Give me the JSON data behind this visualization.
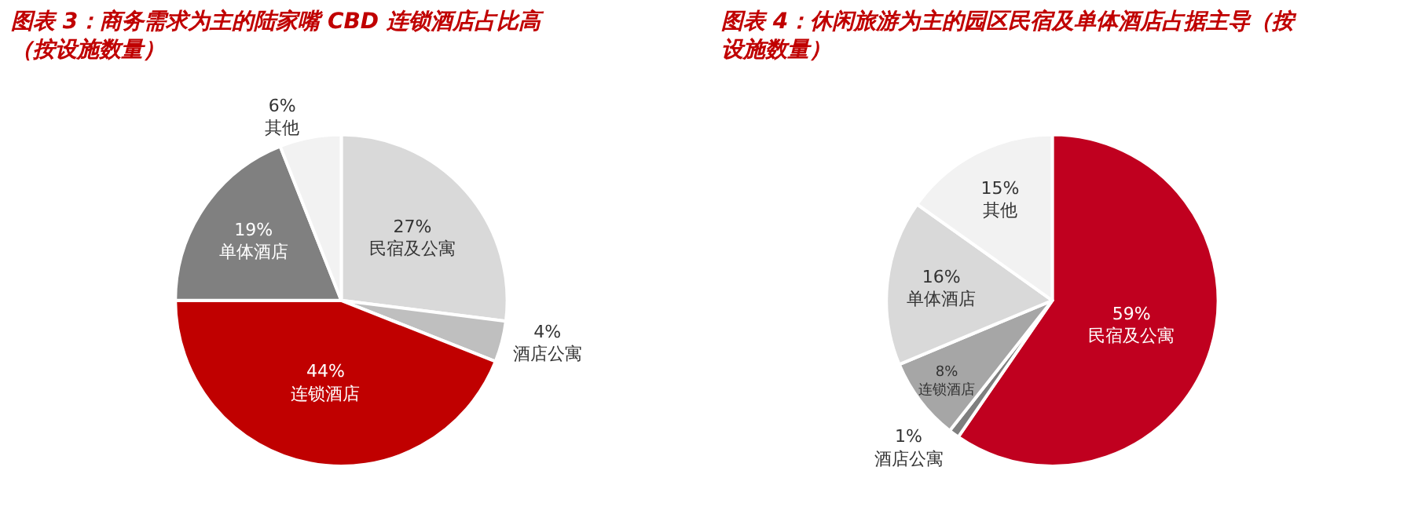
{
  "chart_data": [
    {
      "type": "pie",
      "title": "图表 3：商务需求为主的陆家嘴 CBD 连锁酒店占比高（按设施数量）",
      "categories": [
        "民宿及公寓",
        "酒店公寓",
        "连锁酒店",
        "单体酒店",
        "其他"
      ],
      "values": [
        27,
        4,
        44,
        19,
        6
      ],
      "value_labels": [
        "27%",
        "4%",
        "44%",
        "19%",
        "6%"
      ],
      "colors": [
        "#d9d9d9",
        "#bfbfbf",
        "#c00000",
        "#808080",
        "#f2f2f2"
      ]
    },
    {
      "type": "pie",
      "title": "图表 4：休闲旅游为主的园区民宿及单体酒店占据主导（按设施数量）",
      "categories": [
        "民宿及公寓",
        "酒店公寓",
        "连锁酒店",
        "单体酒店",
        "其他"
      ],
      "values": [
        59,
        1,
        8,
        16,
        15
      ],
      "value_labels": [
        "59%",
        "1%",
        "8%",
        "16%",
        "15%"
      ],
      "colors": [
        "#c0001f",
        "#7f7f7f",
        "#a6a6a6",
        "#d9d9d9",
        "#f2f2f2"
      ]
    }
  ]
}
